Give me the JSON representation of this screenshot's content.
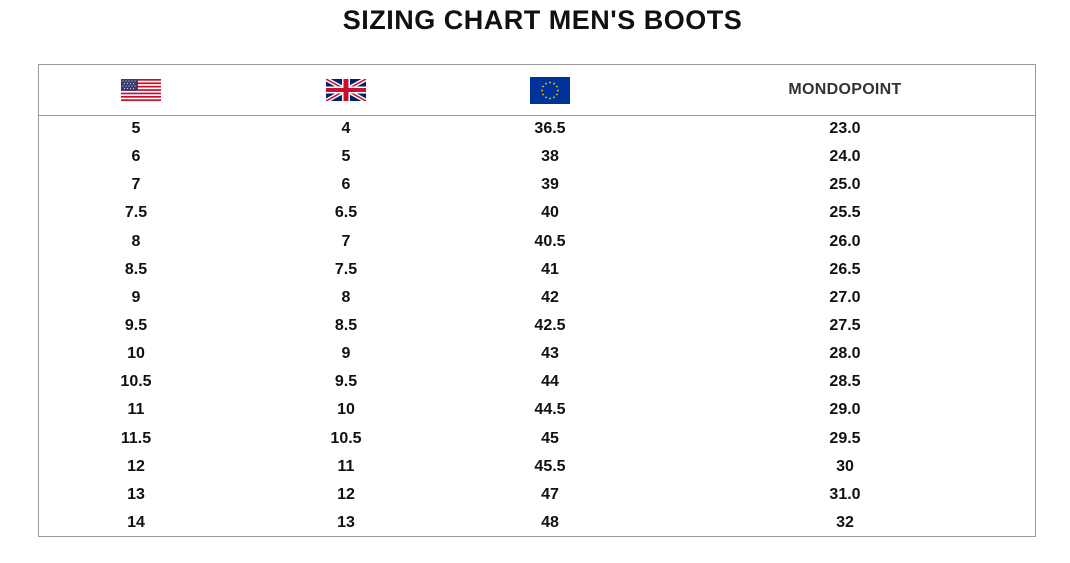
{
  "title": "SIZING CHART MEN'S BOOTS",
  "header": {
    "columns": [
      {
        "kind": "flag",
        "icon": "us-flag-icon"
      },
      {
        "kind": "flag",
        "icon": "uk-flag-icon"
      },
      {
        "kind": "flag",
        "icon": "eu-flag-icon"
      },
      {
        "kind": "text",
        "label": "MONDOPOINT"
      }
    ]
  },
  "rows": [
    [
      "5",
      "4",
      "36.5",
      "23.0"
    ],
    [
      "6",
      "5",
      "38",
      "24.0"
    ],
    [
      "7",
      "6",
      "39",
      "25.0"
    ],
    [
      "7.5",
      "6.5",
      "40",
      "25.5"
    ],
    [
      "8",
      "7",
      "40.5",
      "26.0"
    ],
    [
      "8.5",
      "7.5",
      "41",
      "26.5"
    ],
    [
      "9",
      "8",
      "42",
      "27.0"
    ],
    [
      "9.5",
      "8.5",
      "42.5",
      "27.5"
    ],
    [
      "10",
      "9",
      "43",
      "28.0"
    ],
    [
      "10.5",
      "9.5",
      "44",
      "28.5"
    ],
    [
      "11",
      "10",
      "44.5",
      "29.0"
    ],
    [
      "11.5",
      "10.5",
      "45",
      "29.5"
    ],
    [
      "12",
      "11",
      "45.5",
      "30"
    ],
    [
      "13",
      "12",
      "47",
      "31.0"
    ],
    [
      "14",
      "13",
      "48",
      "32"
    ]
  ],
  "colors": {
    "border": "#9a9a9a",
    "text": "#111111",
    "eu_blue": "#003399",
    "eu_gold": "#ffcc00"
  }
}
